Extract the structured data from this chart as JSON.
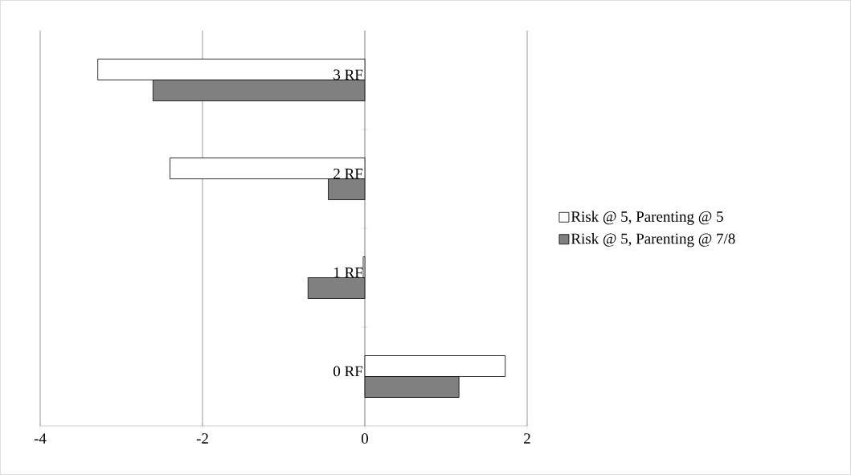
{
  "chart_data": {
    "type": "bar",
    "orientation": "horizontal",
    "categories": [
      "3 RF",
      "2 RF",
      "1 RF",
      "0 RF"
    ],
    "series": [
      {
        "name": "Risk @ 5, Parenting @ 5",
        "color": "#ffffff",
        "values": [
          -3.29,
          -2.4,
          -0.02,
          1.73
        ]
      },
      {
        "name": "Risk @ 5, Parenting @ 7/8",
        "color": "#808080",
        "values": [
          -2.61,
          -0.45,
          -0.7,
          1.16
        ]
      }
    ],
    "xlim": [
      -4,
      2
    ],
    "xticks": [
      -4,
      -2,
      0,
      2
    ],
    "grid": "x",
    "legend": "right"
  }
}
